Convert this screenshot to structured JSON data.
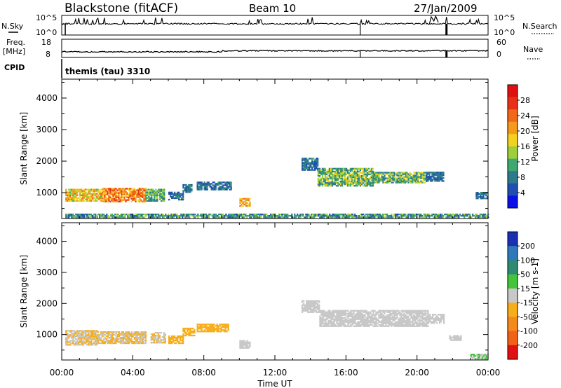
{
  "header": {
    "site": "Blackstone (fitACF)",
    "beam": "Beam 10",
    "date": "27/Jan/2009"
  },
  "top_panels": {
    "nsky_label": "N.Sky",
    "nsky_ticks": [
      "10^5",
      "10^0"
    ],
    "nsearch_label": "N.Search",
    "nsearch_ticks": [
      "10^5",
      "10^0"
    ],
    "freq_label": "Freq.",
    "freq_unit": "[MHz]",
    "freq_ticks": [
      "18",
      "8"
    ],
    "nave_label": "Nave",
    "nave_ticks": [
      "60",
      "0"
    ],
    "cpid_label": "CPID",
    "cpid_value": "themis (tau) 3310"
  },
  "colors": {
    "power": [
      "#0a10e6",
      "#1f4fb0",
      "#2e7a8c",
      "#3fa870",
      "#9fce3c",
      "#f2d21e",
      "#f59a1a",
      "#f06818",
      "#e83016",
      "#e01010"
    ],
    "velocity": [
      "#1a2fb4",
      "#2f78ba",
      "#2e8a72",
      "#43c43a",
      "#c8c8c8",
      "#f7ae1b",
      "#f4891c",
      "#f26216",
      "#e21010"
    ],
    "ground": "#a0a0a0"
  },
  "chart_data": [
    {
      "type": "heatmap",
      "name": "power",
      "xlabel": "",
      "ylabel": "Slant Range [km]",
      "ylim": [
        180,
        4600
      ],
      "yticks": [
        1000,
        2000,
        3000,
        4000
      ],
      "xlim": [
        0,
        24
      ],
      "colorbar": {
        "label": "Power [dB]",
        "tick_labels": [
          "4",
          "8",
          "12",
          "16",
          "20",
          "24",
          "28"
        ],
        "range": [
          0,
          32
        ]
      },
      "regions": [
        {
          "t0": 0.2,
          "t1": 2.3,
          "r0": 720,
          "r1": 1120,
          "level": 16,
          "spread": 12
        },
        {
          "t0": 2.3,
          "t1": 4.7,
          "r0": 700,
          "r1": 1110,
          "level": 20,
          "spread": 12
        },
        {
          "t0": 4.7,
          "t1": 5.8,
          "r0": 720,
          "r1": 1100,
          "level": 10,
          "spread": 8
        },
        {
          "t0": 6.0,
          "t1": 6.8,
          "r0": 760,
          "r1": 1000,
          "level": 6,
          "spread": 6
        },
        {
          "t0": 6.8,
          "t1": 7.3,
          "r0": 1000,
          "r1": 1250,
          "level": 6,
          "spread": 6
        },
        {
          "t0": 7.6,
          "t1": 9.5,
          "r0": 1080,
          "r1": 1350,
          "level": 6,
          "spread": 6
        },
        {
          "t0": 10.0,
          "t1": 10.6,
          "r0": 560,
          "r1": 820,
          "level": 18,
          "spread": 10
        },
        {
          "t0": 13.5,
          "t1": 14.4,
          "r0": 1700,
          "r1": 2100,
          "level": 6,
          "spread": 6
        },
        {
          "t0": 14.4,
          "t1": 17.5,
          "r0": 1200,
          "r1": 1750,
          "level": 10,
          "spread": 12
        },
        {
          "t0": 17.5,
          "t1": 20.5,
          "r0": 1300,
          "r1": 1650,
          "level": 10,
          "spread": 12
        },
        {
          "t0": 20.5,
          "t1": 21.5,
          "r0": 1350,
          "r1": 1650,
          "level": 6,
          "spread": 6
        },
        {
          "t0": 23.3,
          "t1": 24.0,
          "r0": 800,
          "r1": 1000,
          "level": 6,
          "spread": 6
        },
        {
          "t0": 0.2,
          "t1": 24.0,
          "r0": 200,
          "r1": 320,
          "level": 8,
          "spread": 10
        }
      ]
    },
    {
      "type": "heatmap",
      "name": "velocity",
      "xlabel": "Time UT",
      "ylabel": "Slant Range [km]",
      "ylim": [
        180,
        4600
      ],
      "yticks": [
        1000,
        2000,
        3000,
        4000
      ],
      "xlim": [
        0,
        24
      ],
      "xticks": [
        0,
        4,
        8,
        12,
        16,
        20,
        24
      ],
      "xtick_labels": [
        "00:00",
        "04:00",
        "08:00",
        "12:00",
        "16:00",
        "20:00",
        "00:00"
      ],
      "colorbar": {
        "label": "Velocity [m s-1]",
        "tick_labels": [
          "200",
          "100",
          "50",
          "15",
          "-15",
          "-50",
          "-100",
          "-200"
        ]
      },
      "regions": [
        {
          "t0": 0.2,
          "t1": 2.0,
          "r0": 650,
          "r1": 1120,
          "cls": [
            "#c8c8c8",
            "#f7ae1b"
          ]
        },
        {
          "t0": 2.0,
          "t1": 4.7,
          "r0": 700,
          "r1": 1100,
          "cls": [
            "#f7ae1b",
            "#c8c8c8"
          ]
        },
        {
          "t0": 5.0,
          "t1": 5.8,
          "r0": 720,
          "r1": 1050,
          "cls": [
            "#c8c8c8",
            "#f7ae1b"
          ]
        },
        {
          "t0": 6.0,
          "t1": 6.8,
          "r0": 700,
          "r1": 950,
          "cls": [
            "#f7ae1b"
          ]
        },
        {
          "t0": 6.8,
          "t1": 7.5,
          "r0": 950,
          "r1": 1200,
          "cls": [
            "#f7ae1b"
          ]
        },
        {
          "t0": 7.6,
          "t1": 9.4,
          "r0": 1080,
          "r1": 1350,
          "cls": [
            "#f7ae1b"
          ]
        },
        {
          "t0": 10.0,
          "t1": 10.6,
          "r0": 550,
          "r1": 800,
          "cls": [
            "#c8c8c8"
          ]
        },
        {
          "t0": 13.5,
          "t1": 14.5,
          "r0": 1700,
          "r1": 2100,
          "cls": [
            "#c8c8c8"
          ]
        },
        {
          "t0": 14.5,
          "t1": 20.6,
          "r0": 1250,
          "r1": 1750,
          "cls": [
            "#c8c8c8"
          ]
        },
        {
          "t0": 20.6,
          "t1": 21.5,
          "r0": 1350,
          "r1": 1650,
          "cls": [
            "#c8c8c8"
          ]
        },
        {
          "t0": 21.8,
          "t1": 22.5,
          "r0": 800,
          "r1": 950,
          "cls": [
            "#c8c8c8"
          ]
        },
        {
          "t0": 23.0,
          "t1": 24.0,
          "r0": 200,
          "r1": 350,
          "cls": [
            "#c8c8c8",
            "#43c43a"
          ]
        }
      ]
    }
  ]
}
